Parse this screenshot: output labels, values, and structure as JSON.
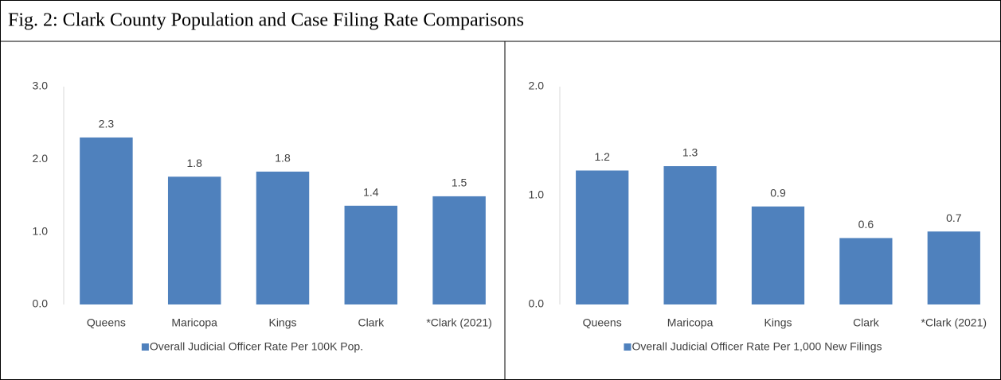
{
  "title": "Fig. 2: Clark County Population and Case Filing Rate Comparisons",
  "chart_data": [
    {
      "type": "bar",
      "categories": [
        "Queens",
        "Maricopa",
        "Kings",
        "Clark",
        "*Clark (2021)"
      ],
      "series": [
        {
          "name": "Overall Judicial Officer Rate Per 100K Pop.",
          "color": "#4f81bd",
          "values": [
            2.3,
            1.76,
            1.83,
            1.36,
            1.49
          ],
          "value_labels": [
            "2.3",
            "1.8",
            "1.8",
            "1.4",
            "1.5"
          ]
        }
      ],
      "ylim": [
        0,
        3
      ],
      "yticks": [
        {
          "value": 0,
          "label": "0.0"
        },
        {
          "value": 1,
          "label": "1.0"
        },
        {
          "value": 2,
          "label": "2.0"
        },
        {
          "value": 3,
          "label": "3.0"
        }
      ],
      "grid": false,
      "legend": "bottom"
    },
    {
      "type": "bar",
      "categories": [
        "Queens",
        "Maricopa",
        "Kings",
        "Clark",
        "*Clark (2021)"
      ],
      "series": [
        {
          "name": "Overall Judicial Officer Rate Per 1,000 New Filings",
          "color": "#4f81bd",
          "values": [
            1.23,
            1.27,
            0.9,
            0.61,
            0.67
          ],
          "value_labels": [
            "1.2",
            "1.3",
            "0.9",
            "0.6",
            "0.7"
          ]
        }
      ],
      "ylim": [
        0,
        2
      ],
      "yticks": [
        {
          "value": 0,
          "label": "0.0"
        },
        {
          "value": 1,
          "label": "1.0"
        },
        {
          "value": 2,
          "label": "2.0"
        }
      ],
      "grid": false,
      "legend": "bottom"
    }
  ]
}
